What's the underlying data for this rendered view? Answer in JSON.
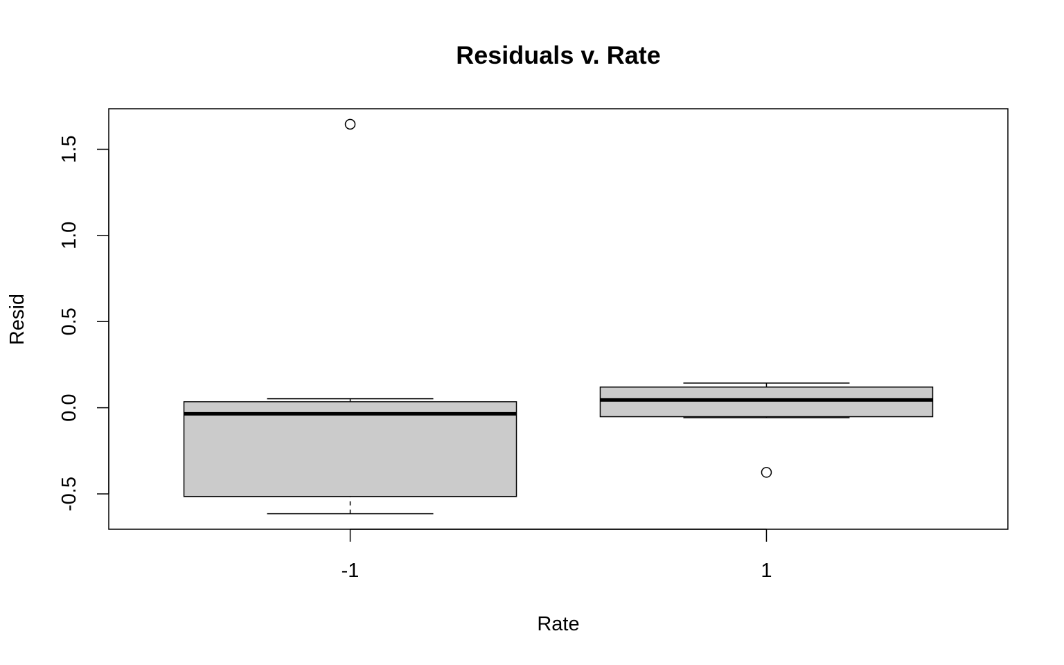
{
  "chart_data": {
    "type": "boxplot",
    "title": "Residuals v. Rate",
    "xlabel": "Rate",
    "ylabel": "Resid",
    "categories": [
      "-1",
      "1"
    ],
    "yticks": [
      -0.5,
      0.0,
      0.5,
      1.0,
      1.5
    ],
    "ytick_labels": [
      "-0.5",
      "0.0",
      "0.5",
      "1.0",
      "1.5"
    ],
    "ylim": [
      -0.705,
      1.735
    ],
    "grid": false,
    "boxes": [
      {
        "category": "-1",
        "whisker_low": -0.615,
        "q1": -0.515,
        "median": -0.035,
        "q3": 0.035,
        "whisker_high": 0.052,
        "outliers": [
          1.645
        ]
      },
      {
        "category": "1",
        "whisker_low": -0.058,
        "q1": -0.052,
        "median": 0.045,
        "q3": 0.12,
        "whisker_high": 0.143,
        "outliers": [
          -0.375
        ]
      }
    ],
    "colors": {
      "box_fill": "#cbcbcb",
      "stroke": "#000000",
      "background": "#ffffff"
    }
  }
}
